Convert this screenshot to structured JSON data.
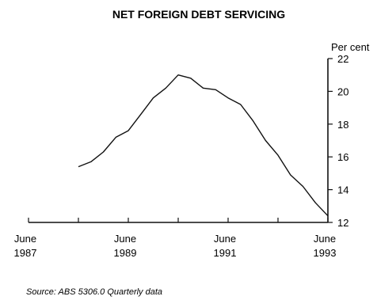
{
  "chart_data": {
    "type": "line",
    "title": "NET FOREIGN DEBT SERVICING",
    "xlabel": "",
    "ylabel": "Per cent",
    "ylim": [
      12,
      22
    ],
    "xlim": [
      1987.5,
      1993.5
    ],
    "yticks": [
      12,
      14,
      16,
      18,
      20,
      22
    ],
    "xticks": [
      1987.5,
      1988.5,
      1989.5,
      1990.5,
      1991.5,
      1992.5,
      1993.5
    ],
    "xtick_labels": [
      {
        "x": 1987.5,
        "line1": "June",
        "line2": "1987"
      },
      {
        "x": 1989.5,
        "line1": "June",
        "line2": "1989"
      },
      {
        "x": 1991.5,
        "line1": "June",
        "line2": "1991"
      },
      {
        "x": 1993.5,
        "line1": "June",
        "line2": "1993"
      }
    ],
    "grid": false,
    "series": [
      {
        "values": [
          {
            "x": 1988.5,
            "y": 15.4
          },
          {
            "x": 1988.75,
            "y": 15.7
          },
          {
            "x": 1989.0,
            "y": 16.3
          },
          {
            "x": 1989.25,
            "y": 17.2
          },
          {
            "x": 1989.5,
            "y": 17.6
          },
          {
            "x": 1989.75,
            "y": 18.6
          },
          {
            "x": 1990.0,
            "y": 19.6
          },
          {
            "x": 1990.25,
            "y": 20.2
          },
          {
            "x": 1990.5,
            "y": 21.0
          },
          {
            "x": 1990.75,
            "y": 20.8
          },
          {
            "x": 1991.0,
            "y": 20.2
          },
          {
            "x": 1991.25,
            "y": 20.1
          },
          {
            "x": 1991.5,
            "y": 19.6
          },
          {
            "x": 1991.75,
            "y": 19.2
          },
          {
            "x": 1992.0,
            "y": 18.2
          },
          {
            "x": 1992.25,
            "y": 17.0
          },
          {
            "x": 1992.5,
            "y": 16.1
          },
          {
            "x": 1992.75,
            "y": 14.9
          },
          {
            "x": 1993.0,
            "y": 14.2
          },
          {
            "x": 1993.25,
            "y": 13.2
          },
          {
            "x": 1993.5,
            "y": 12.4
          }
        ]
      }
    ],
    "source": "Source: ABS 5306.0 Quarterly data"
  }
}
